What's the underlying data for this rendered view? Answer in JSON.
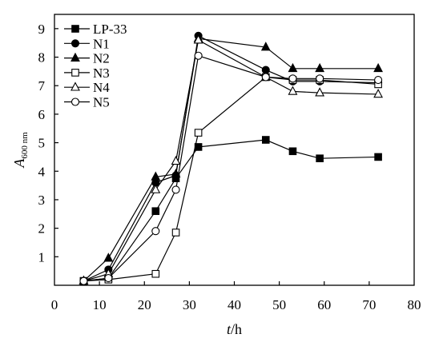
{
  "chart_data": {
    "type": "line",
    "title": "",
    "xlabel": {
      "italic": "t",
      "text": "/h"
    },
    "ylabel": {
      "italic": "A",
      "sub": "600 nm"
    },
    "xlim": [
      0,
      80
    ],
    "ylim": [
      0,
      9.5
    ],
    "x_ticks": [
      "0",
      "10",
      "20",
      "30",
      "40",
      "50",
      "60",
      "70",
      "80"
    ],
    "y_ticks": [
      "1",
      "2",
      "3",
      "4",
      "5",
      "6",
      "7",
      "8",
      "9"
    ],
    "grid": false,
    "legend_position": "top-left",
    "x": [
      6.5,
      12,
      22.5,
      27,
      32,
      47,
      53,
      59,
      72
    ],
    "series": [
      {
        "name": "LP-33",
        "marker": "square-filled",
        "values": [
          0.15,
          0.25,
          2.6,
          3.75,
          4.85,
          5.1,
          4.7,
          4.45,
          4.5
        ]
      },
      {
        "name": "N1",
        "marker": "circle-filled",
        "values": [
          0.15,
          0.55,
          3.6,
          3.85,
          8.75,
          7.55,
          7.15,
          7.15,
          7.1
        ]
      },
      {
        "name": "N2",
        "marker": "triangle-filled",
        "values": [
          0.15,
          0.95,
          3.8,
          3.9,
          8.65,
          8.35,
          7.6,
          7.6,
          7.6
        ]
      },
      {
        "name": "N3",
        "marker": "square-open",
        "values": [
          0.15,
          0.2,
          0.4,
          1.85,
          5.35,
          7.3,
          7.2,
          7.2,
          7.05
        ]
      },
      {
        "name": "N4",
        "marker": "triangle-open",
        "values": [
          0.15,
          0.4,
          3.35,
          4.35,
          8.6,
          7.3,
          6.8,
          6.75,
          6.7
        ]
      },
      {
        "name": "N5",
        "marker": "circle-open",
        "values": [
          0.15,
          0.25,
          1.9,
          3.35,
          8.05,
          7.3,
          7.25,
          7.25,
          7.2
        ]
      }
    ]
  }
}
